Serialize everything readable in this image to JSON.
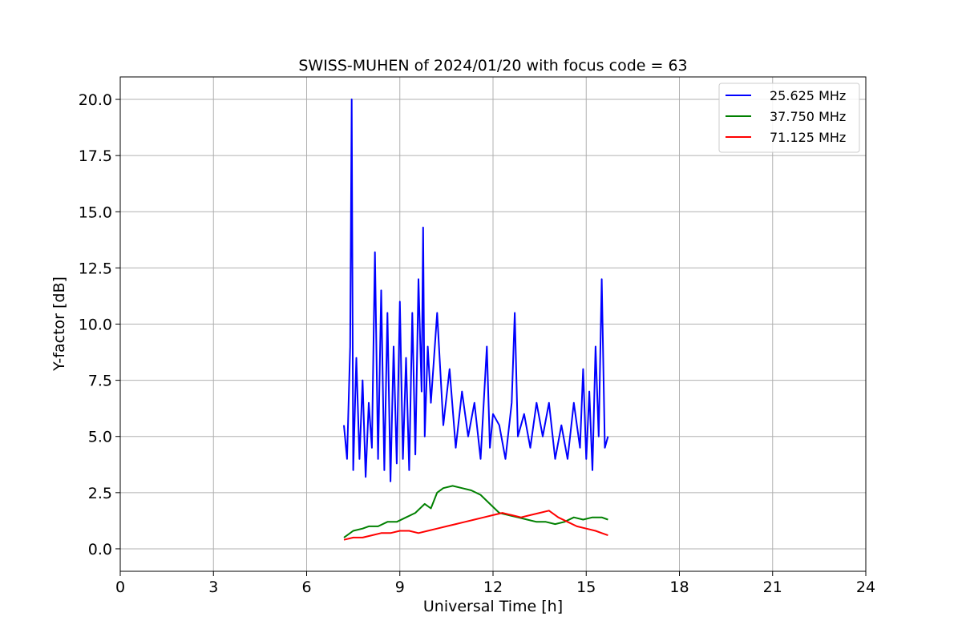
{
  "chart_data": {
    "type": "line",
    "title": "SWISS-MUHEN of 2024/01/20 with focus code = 63",
    "xlabel": "Universal Time [h]",
    "ylabel": "Y-factor [dB]",
    "xlim": [
      0,
      24
    ],
    "ylim": [
      -1,
      21
    ],
    "x_ticks": [
      0,
      3,
      6,
      9,
      12,
      15,
      18,
      21,
      24
    ],
    "x_tick_labels": [
      "0",
      "3",
      "6",
      "9",
      "12",
      "15",
      "18",
      "21",
      "24"
    ],
    "y_ticks": [
      0,
      2.5,
      5,
      7.5,
      10,
      12.5,
      15,
      17.5,
      20
    ],
    "y_tick_labels": [
      "0.0",
      "2.5",
      "5.0",
      "7.5",
      "10.0",
      "12.5",
      "15.0",
      "17.5",
      "20.0"
    ],
    "grid": true,
    "legend_position": "top-right",
    "series": [
      {
        "name": "25.625 MHz",
        "color": "#0000ff",
        "x": [
          7.2,
          7.3,
          7.4,
          7.45,
          7.5,
          7.6,
          7.7,
          7.8,
          7.9,
          8.0,
          8.1,
          8.2,
          8.3,
          8.4,
          8.5,
          8.6,
          8.7,
          8.8,
          8.9,
          9.0,
          9.1,
          9.2,
          9.3,
          9.4,
          9.5,
          9.6,
          9.7,
          9.75,
          9.8,
          9.9,
          10.0,
          10.2,
          10.4,
          10.6,
          10.8,
          11.0,
          11.2,
          11.4,
          11.6,
          11.8,
          11.9,
          12.0,
          12.2,
          12.4,
          12.6,
          12.7,
          12.8,
          13.0,
          13.2,
          13.4,
          13.6,
          13.8,
          14.0,
          14.2,
          14.4,
          14.6,
          14.8,
          14.9,
          15.0,
          15.1,
          15.2,
          15.3,
          15.4,
          15.5,
          15.6,
          15.7
        ],
        "y": [
          5.5,
          4.0,
          9.0,
          20.0,
          3.5,
          8.5,
          4.0,
          7.5,
          3.2,
          6.5,
          4.5,
          13.2,
          4.0,
          11.5,
          3.5,
          10.5,
          3.0,
          9.0,
          3.8,
          11.0,
          4.0,
          8.5,
          3.5,
          10.5,
          4.2,
          12.0,
          7.0,
          14.3,
          5.0,
          9.0,
          6.5,
          10.5,
          5.5,
          8.0,
          4.5,
          7.0,
          5.0,
          6.5,
          4.0,
          9.0,
          4.5,
          6.0,
          5.5,
          4.0,
          6.5,
          10.5,
          5.0,
          6.0,
          4.5,
          6.5,
          5.0,
          6.5,
          4.0,
          5.5,
          4.0,
          6.5,
          4.5,
          8.0,
          4.0,
          7.0,
          3.5,
          9.0,
          5.0,
          12.0,
          4.5,
          5.0
        ]
      },
      {
        "name": "37.750 MHz",
        "color": "#008000",
        "x": [
          7.2,
          7.5,
          7.8,
          8.0,
          8.3,
          8.6,
          8.9,
          9.2,
          9.5,
          9.8,
          10.0,
          10.2,
          10.4,
          10.7,
          11.0,
          11.3,
          11.6,
          11.9,
          12.2,
          12.5,
          12.8,
          13.1,
          13.4,
          13.7,
          14.0,
          14.3,
          14.6,
          14.9,
          15.2,
          15.5,
          15.7
        ],
        "y": [
          0.5,
          0.8,
          0.9,
          1.0,
          1.0,
          1.2,
          1.2,
          1.4,
          1.6,
          2.0,
          1.8,
          2.5,
          2.7,
          2.8,
          2.7,
          2.6,
          2.4,
          2.0,
          1.6,
          1.5,
          1.4,
          1.3,
          1.2,
          1.2,
          1.1,
          1.2,
          1.4,
          1.3,
          1.4,
          1.4,
          1.3
        ]
      },
      {
        "name": "71.125 MHz",
        "color": "#ff0000",
        "x": [
          7.2,
          7.5,
          7.8,
          8.1,
          8.4,
          8.7,
          9.0,
          9.3,
          9.6,
          9.9,
          10.2,
          10.5,
          10.8,
          11.1,
          11.4,
          11.7,
          12.0,
          12.3,
          12.6,
          12.9,
          13.2,
          13.5,
          13.8,
          14.1,
          14.4,
          14.7,
          15.0,
          15.3,
          15.5,
          15.7
        ],
        "y": [
          0.4,
          0.5,
          0.5,
          0.6,
          0.7,
          0.7,
          0.8,
          0.8,
          0.7,
          0.8,
          0.9,
          1.0,
          1.1,
          1.2,
          1.3,
          1.4,
          1.5,
          1.6,
          1.5,
          1.4,
          1.5,
          1.6,
          1.7,
          1.4,
          1.2,
          1.0,
          0.9,
          0.8,
          0.7,
          0.6
        ]
      }
    ]
  }
}
